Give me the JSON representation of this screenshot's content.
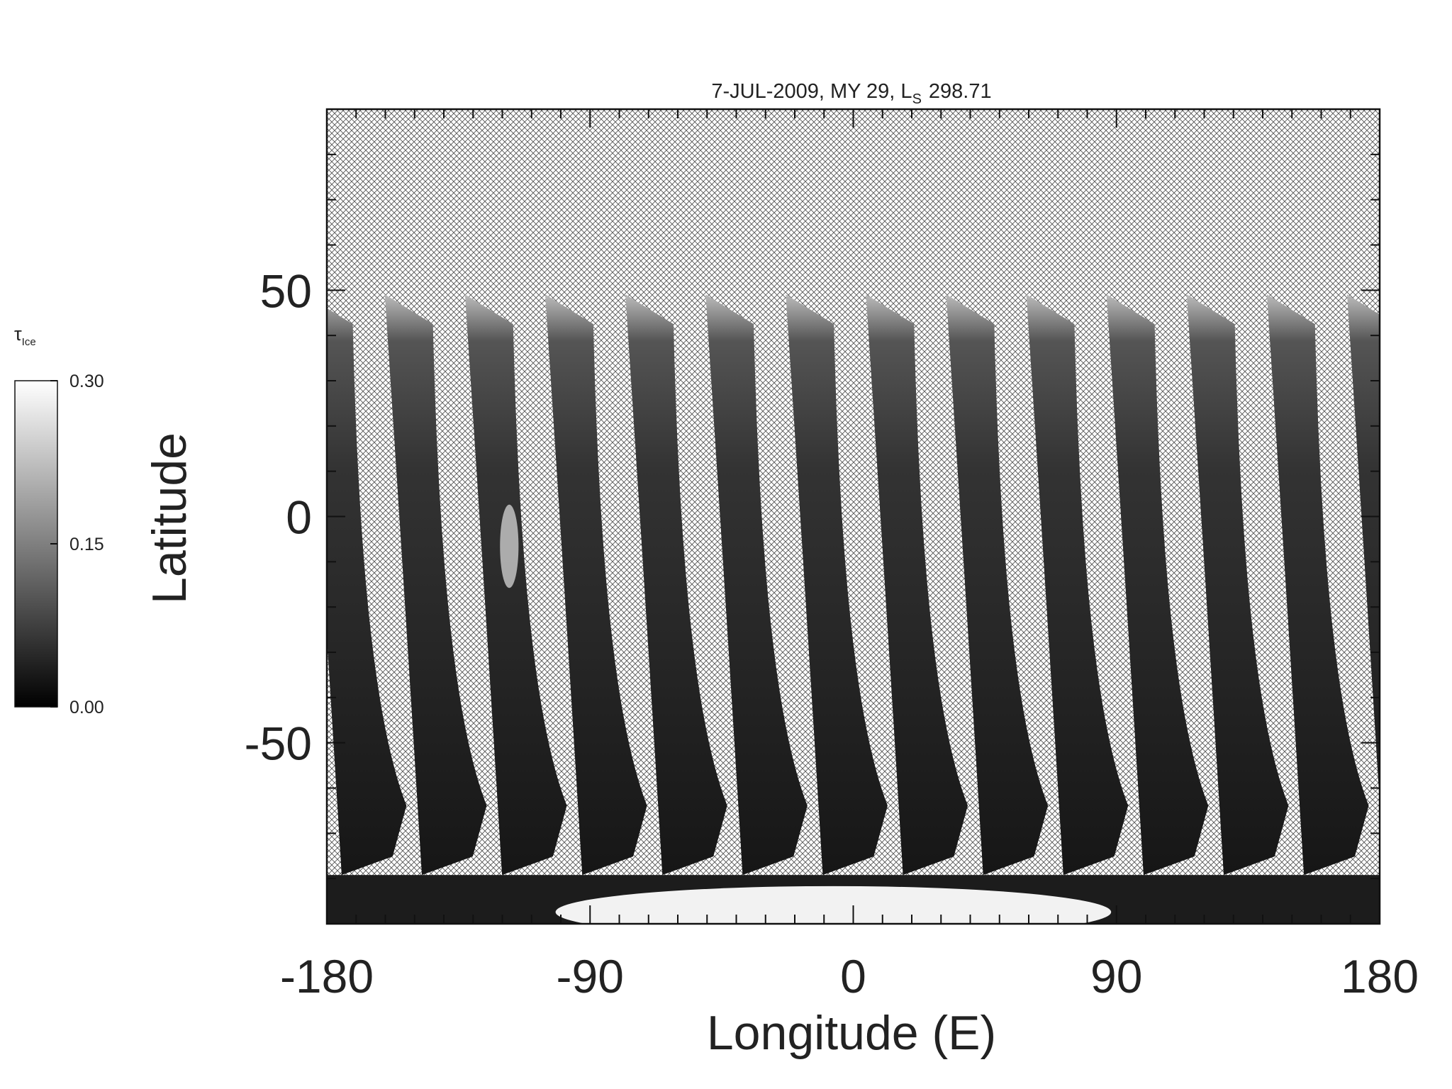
{
  "chart_data": {
    "type": "map",
    "title": "7-JUL-2009, MY 29,  L",
    "title_sub": "S",
    "title_end": "298.71",
    "xlabel": "Longitude (E)",
    "ylabel": "Latitude",
    "xlim": [
      -180,
      180
    ],
    "ylim": [
      -90,
      90
    ],
    "xticks": [
      -180,
      -90,
      0,
      90,
      180
    ],
    "yticks": [
      -50,
      0,
      50
    ],
    "xminorticks": [
      -170,
      -160,
      -150,
      -140,
      -130,
      -120,
      -110,
      -100,
      -80,
      -70,
      -60,
      -50,
      -40,
      -30,
      -20,
      -10,
      10,
      20,
      30,
      40,
      50,
      60,
      70,
      80,
      100,
      110,
      120,
      130,
      140,
      150,
      160,
      170
    ],
    "yminorticks": [
      -80,
      -70,
      -60,
      -40,
      -30,
      -20,
      -10,
      10,
      20,
      30,
      40,
      60,
      70,
      80
    ],
    "colorbar": {
      "label": "τ",
      "label_sub": "Ice",
      "lim": [
        0,
        0.3
      ],
      "ticks": [
        {
          "value": 0,
          "label": "0.00"
        },
        {
          "value": 0.15,
          "label": "0.15"
        },
        {
          "value": 0.3,
          "label": "0.30"
        }
      ]
    }
  }
}
